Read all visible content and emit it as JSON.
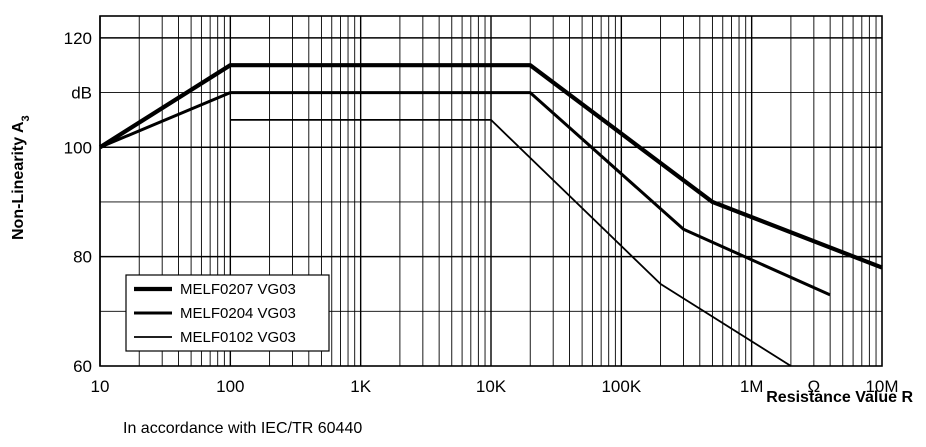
{
  "chart_data": {
    "type": "line",
    "x_scale": "log",
    "xlim": [
      10,
      10000000
    ],
    "ylim": [
      60,
      124
    ],
    "grid": true,
    "x_ticks": [
      {
        "value": 10,
        "label": "10"
      },
      {
        "value": 100,
        "label": "100"
      },
      {
        "value": 1000,
        "label": "1K"
      },
      {
        "value": 10000,
        "label": "10K"
      },
      {
        "value": 100000,
        "label": "100K"
      },
      {
        "value": 1000000,
        "label": "1M"
      },
      {
        "value": 10000000,
        "label": "10M"
      }
    ],
    "x_unit_label": "Ω",
    "y_ticks": [
      {
        "value": 60,
        "label": "60"
      },
      {
        "value": 80,
        "label": "80"
      },
      {
        "value": 100,
        "label": "100"
      },
      {
        "value": 120,
        "label": "120"
      }
    ],
    "y_unit_label": "dB",
    "ylabel": "Non-Linearity A",
    "ylabel_subscript": "3",
    "xlabel": "Resistance Value R",
    "legend_position": "bottom-left",
    "series": [
      {
        "name": "MELF0207 VG03",
        "line_width": "thick",
        "points": [
          [
            10,
            100
          ],
          [
            100,
            115
          ],
          [
            20000,
            115
          ],
          [
            500000,
            90
          ],
          [
            10000000,
            78
          ]
        ]
      },
      {
        "name": "MELF0204 VG03",
        "line_width": "medium",
        "points": [
          [
            10,
            100
          ],
          [
            100,
            110
          ],
          [
            20000,
            110
          ],
          [
            300000,
            85
          ],
          [
            4000000,
            73
          ]
        ]
      },
      {
        "name": "MELF0102 VG03",
        "line_width": "thin",
        "points": [
          [
            100,
            105
          ],
          [
            10000,
            105
          ],
          [
            200000,
            75
          ],
          [
            2000000,
            60
          ]
        ]
      }
    ]
  },
  "footnote": "In accordance with IEC/TR 60440"
}
